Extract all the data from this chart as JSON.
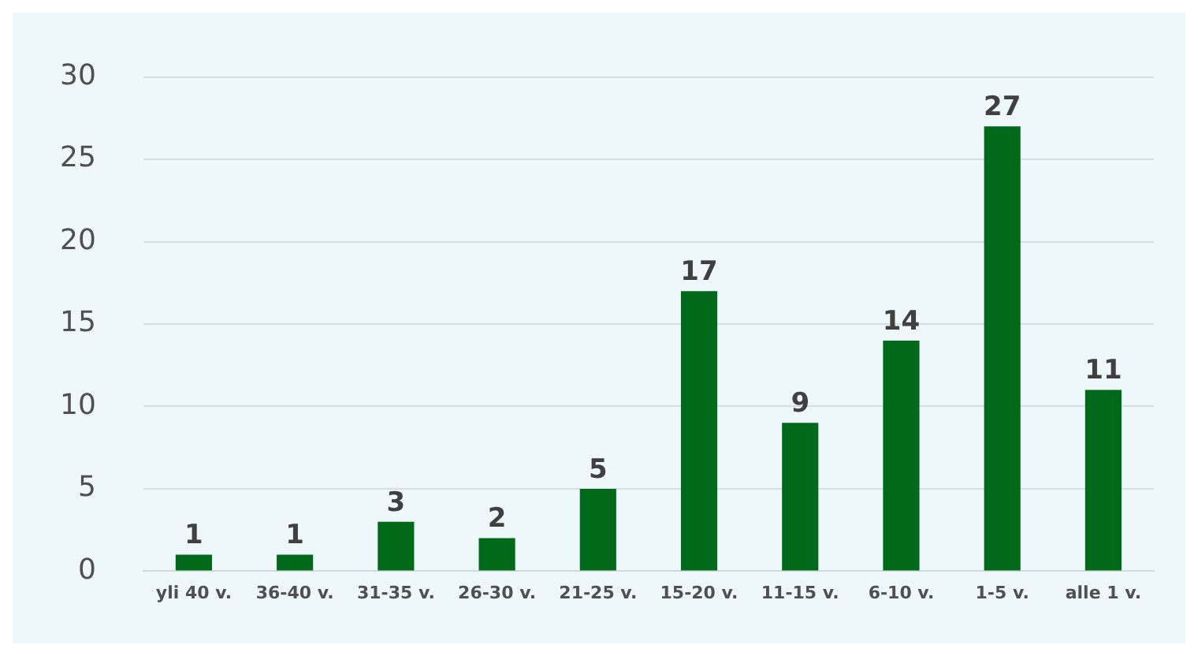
{
  "chart_data": {
    "type": "bar",
    "categories": [
      "yli 40 v.",
      "36-40 v.",
      "31-35 v.",
      "26-30 v.",
      "21-25 v.",
      "15-20 v.",
      "11-15 v.",
      "6-10 v.",
      "1-5 v.",
      "alle 1 v."
    ],
    "values": [
      1,
      1,
      3,
      2,
      5,
      17,
      9,
      14,
      27,
      11
    ],
    "color": "#006a1a",
    "ylim": [
      0,
      30
    ],
    "yticks": [
      0,
      5,
      10,
      15,
      20,
      25,
      30
    ],
    "grid": "y",
    "data_labels": true
  }
}
